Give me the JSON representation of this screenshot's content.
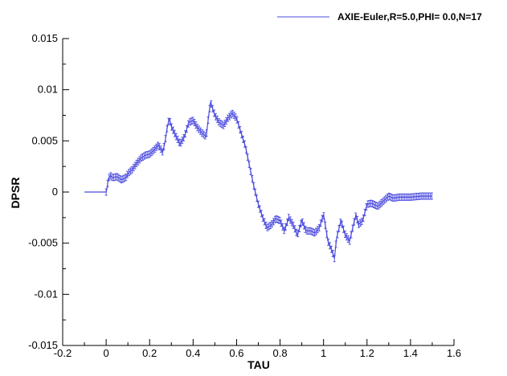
{
  "chart_data": {
    "type": "line",
    "title": "",
    "xlabel": "TAU",
    "ylabel": "DPSR",
    "xlim": [
      -0.2,
      1.6
    ],
    "ylim": [
      -0.015,
      0.015
    ],
    "x_ticks": [
      -0.2,
      0,
      0.2,
      0.4,
      0.6,
      0.8,
      1,
      1.2,
      1.4,
      1.6
    ],
    "x_tick_labels": [
      "-0.2",
      "0",
      "0.2",
      "0.4",
      "0.6",
      "0.8",
      "1",
      "1.2",
      "1.4",
      "1.6"
    ],
    "y_ticks": [
      -0.015,
      -0.01,
      -0.005,
      0,
      0.005,
      0.01,
      0.015
    ],
    "y_tick_labels": [
      "-0.015",
      "-0.01",
      "-0.005",
      "0",
      "0.005",
      "0.01",
      "0.015"
    ],
    "grid": false,
    "legend_position": "top-right",
    "series_color": "#4a4adf",
    "series": [
      {
        "name": "AXIE-Euler,R=5.0,PHI= 0.0,N=17",
        "x": [
          -0.1,
          -0.05,
          0.0,
          0.005,
          0.01,
          0.02,
          0.03,
          0.05,
          0.07,
          0.09,
          0.1,
          0.12,
          0.14,
          0.16,
          0.18,
          0.2,
          0.22,
          0.24,
          0.26,
          0.27,
          0.28,
          0.29,
          0.3,
          0.32,
          0.34,
          0.36,
          0.38,
          0.4,
          0.42,
          0.44,
          0.46,
          0.47,
          0.48,
          0.5,
          0.52,
          0.54,
          0.56,
          0.58,
          0.6,
          0.62,
          0.64,
          0.66,
          0.68,
          0.7,
          0.72,
          0.74,
          0.76,
          0.78,
          0.8,
          0.82,
          0.84,
          0.86,
          0.88,
          0.9,
          0.92,
          0.94,
          0.96,
          0.98,
          1.0,
          1.02,
          1.04,
          1.05,
          1.06,
          1.08,
          1.1,
          1.12,
          1.14,
          1.15,
          1.16,
          1.18,
          1.2,
          1.22,
          1.25,
          1.28,
          1.3,
          1.32,
          1.35,
          1.4,
          1.45,
          1.5
        ],
        "values": [
          0.0,
          0.0,
          0.0,
          0.0005,
          0.0013,
          0.0016,
          0.0014,
          0.0015,
          0.0012,
          0.0014,
          0.0018,
          0.0022,
          0.0028,
          0.0033,
          0.0036,
          0.0037,
          0.0041,
          0.0046,
          0.0039,
          0.0048,
          0.0062,
          0.0072,
          0.0064,
          0.0055,
          0.0047,
          0.0054,
          0.0068,
          0.007,
          0.0063,
          0.0058,
          0.0054,
          0.0072,
          0.0088,
          0.0075,
          0.0068,
          0.0065,
          0.0072,
          0.0077,
          0.0072,
          0.0058,
          0.0045,
          0.0025,
          0.0005,
          -0.0012,
          -0.0025,
          -0.0035,
          -0.0032,
          -0.0026,
          -0.0028,
          -0.0038,
          -0.0025,
          -0.0032,
          -0.0042,
          -0.0028,
          -0.0038,
          -0.0038,
          -0.004,
          -0.0035,
          -0.0022,
          -0.0048,
          -0.0058,
          -0.0065,
          -0.0045,
          -0.0028,
          -0.0042,
          -0.0048,
          -0.003,
          -0.0022,
          -0.0032,
          -0.0028,
          -0.0012,
          -0.0011,
          -0.0014,
          -0.0008,
          -0.0004,
          -0.0006,
          -0.0005,
          -0.0005,
          -0.0004,
          -0.0004
        ]
      }
    ]
  }
}
